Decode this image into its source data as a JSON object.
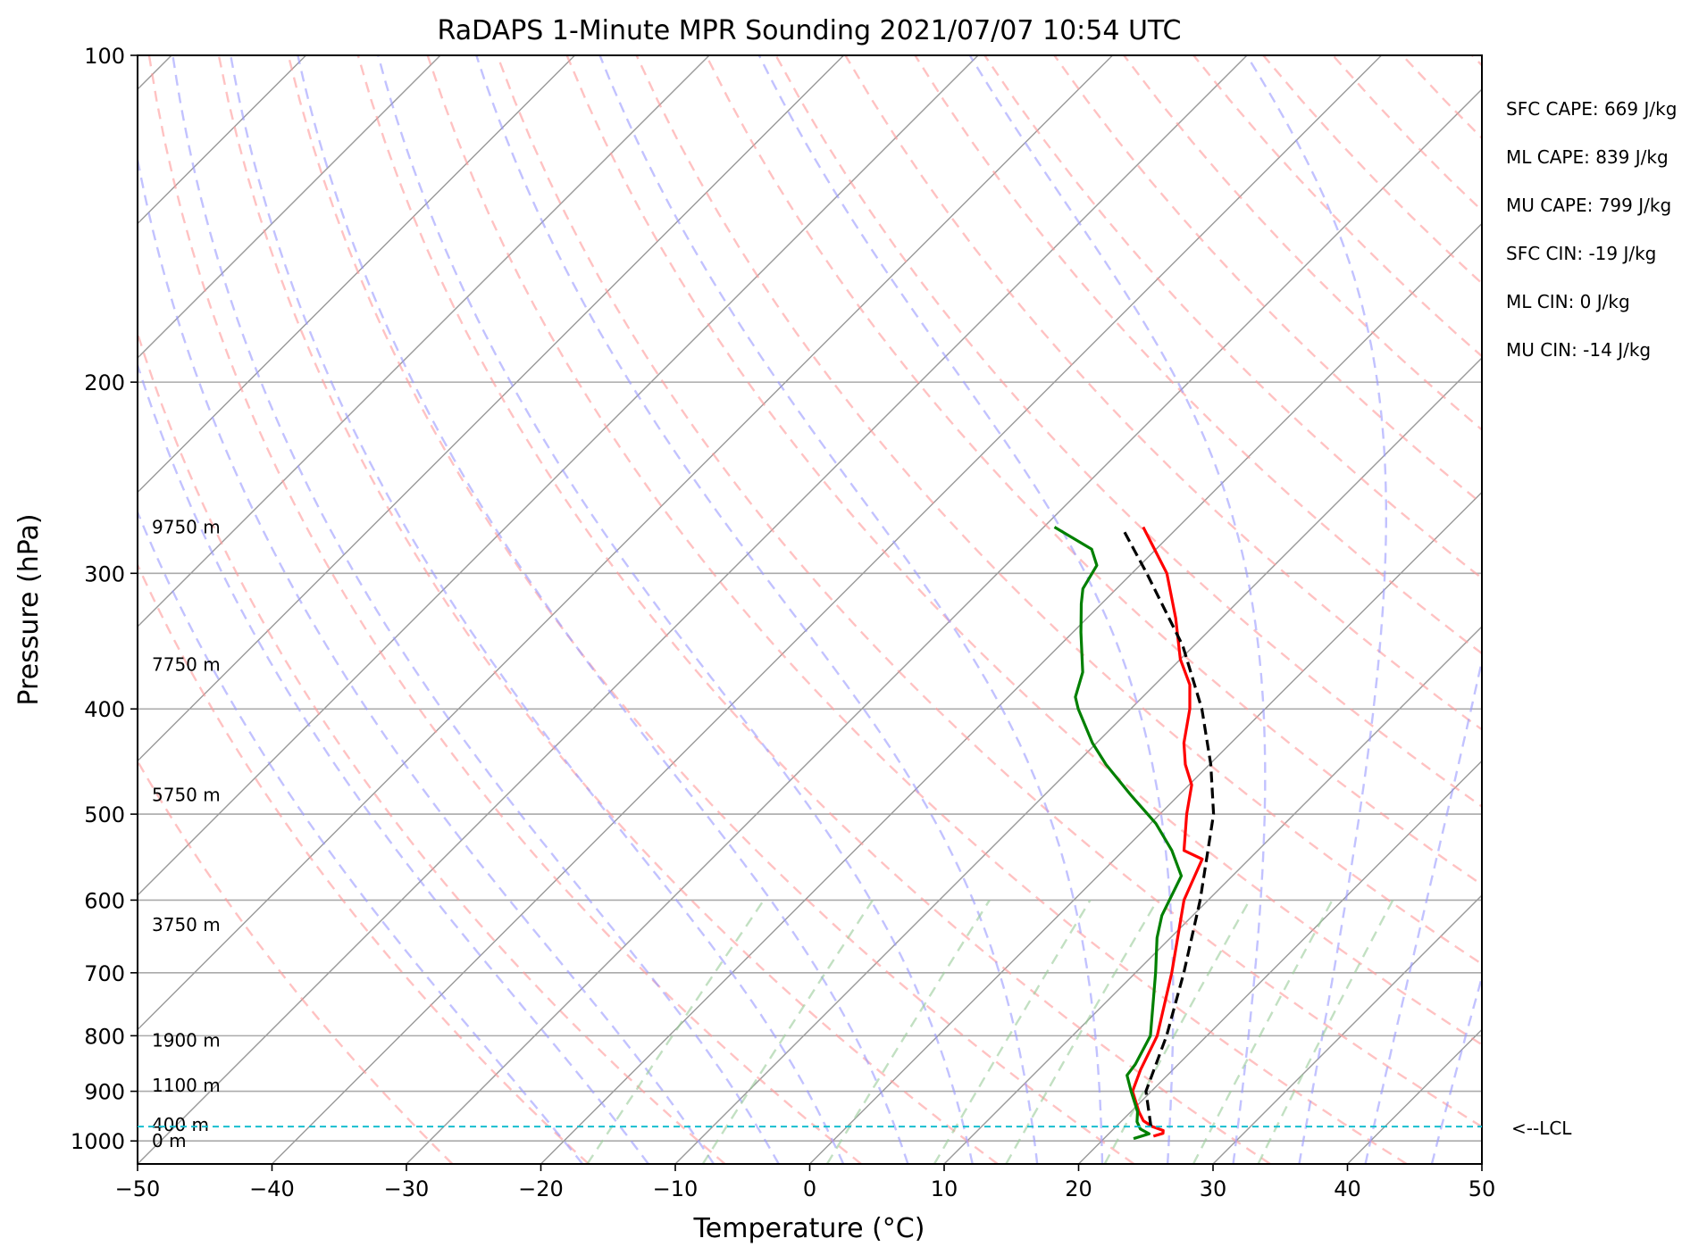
{
  "chart_data": {
    "type": "line",
    "title": "RaDAPS 1-Minute MPR Sounding 2021/07/07 10:54 UTC",
    "xlabel": "Temperature (°C)",
    "ylabel": "Pressure (hPa)",
    "xlim": [
      -50,
      50
    ],
    "ylim": [
      1050,
      100
    ],
    "y_scale": "log",
    "skew": "isotherms tilted 45° (skew-T log-p)",
    "grid": true,
    "x_ticks": [
      -50,
      -40,
      -30,
      -20,
      -10,
      0,
      10,
      20,
      30,
      40,
      50
    ],
    "x_tick_labels": [
      "−50",
      "−40",
      "−30",
      "−20",
      "−10",
      "0",
      "10",
      "20",
      "30",
      "40",
      "50"
    ],
    "y_ticks": [
      1000,
      900,
      800,
      700,
      600,
      500,
      400,
      300,
      200,
      100
    ],
    "y_tick_labels": [
      "1000",
      "900",
      "800",
      "700",
      "600",
      "500",
      "400",
      "300",
      "200",
      "100"
    ],
    "height_labels": [
      {
        "text": "9750 m",
        "pressure": 272
      },
      {
        "text": "7750 m",
        "pressure": 364
      },
      {
        "text": "5750 m",
        "pressure": 480
      },
      {
        "text": "3750 m",
        "pressure": 632
      },
      {
        "text": "1900 m",
        "pressure": 808
      },
      {
        "text": "1100 m",
        "pressure": 889
      },
      {
        "text": "400 m",
        "pressure": 966
      },
      {
        "text": "0 m",
        "pressure": 1000
      }
    ],
    "lcl": {
      "pressure": 970,
      "label": "<--LCL",
      "color": "#17becf"
    },
    "indices": [
      "SFC CAPE: 669 J/kg",
      "ML CAPE: 839 J/kg",
      "MU CAPE: 799 J/kg",
      "SFC CIN: -19 J/kg",
      "ML CIN: 0 J/kg",
      "MU CIN: -14 J/kg"
    ],
    "series": [
      {
        "role": "temperature",
        "color": "#ff0000",
        "points": [
          [
            990,
            23.5
          ],
          [
            984,
            24.0
          ],
          [
            978,
            23.8
          ],
          [
            970,
            22.7
          ],
          [
            958,
            21.6
          ],
          [
            940,
            20.6
          ],
          [
            900,
            18.6
          ],
          [
            860,
            17.6
          ],
          [
            800,
            16.3
          ],
          [
            700,
            12.7
          ],
          [
            600,
            8.2
          ],
          [
            550,
            6.5
          ],
          [
            540,
            4.5
          ],
          [
            500,
            2.0
          ],
          [
            470,
            0.2
          ],
          [
            450,
            -1.8
          ],
          [
            430,
            -3.5
          ],
          [
            400,
            -5.6
          ],
          [
            380,
            -7.4
          ],
          [
            360,
            -10.0
          ],
          [
            330,
            -13.4
          ],
          [
            300,
            -17.4
          ],
          [
            272,
            -22.6
          ]
        ]
      },
      {
        "role": "dewpoint",
        "color": "#008000",
        "points": [
          [
            995,
            22.2
          ],
          [
            985,
            23.0
          ],
          [
            975,
            22.0
          ],
          [
            960,
            21.2
          ],
          [
            940,
            20.5
          ],
          [
            900,
            18.5
          ],
          [
            870,
            17.0
          ],
          [
            850,
            16.8
          ],
          [
            800,
            15.8
          ],
          [
            700,
            11.5
          ],
          [
            650,
            9.0
          ],
          [
            620,
            7.7
          ],
          [
            570,
            6.2
          ],
          [
            540,
            3.6
          ],
          [
            510,
            0.4
          ],
          [
            480,
            -3.6
          ],
          [
            450,
            -7.7
          ],
          [
            430,
            -10.3
          ],
          [
            400,
            -13.9
          ],
          [
            390,
            -15.0
          ],
          [
            370,
            -16.3
          ],
          [
            340,
            -19.4
          ],
          [
            320,
            -21.5
          ],
          [
            310,
            -22.5
          ],
          [
            295,
            -23.2
          ],
          [
            285,
            -24.8
          ],
          [
            272,
            -29.2
          ]
        ]
      },
      {
        "role": "parcel",
        "color": "#000000",
        "dashed": true,
        "points": [
          [
            970,
            22.6
          ],
          [
            900,
            19.6
          ],
          [
            800,
            17.0
          ],
          [
            700,
            13.6
          ],
          [
            600,
            9.4
          ],
          [
            500,
            4.0
          ],
          [
            450,
            0.1
          ],
          [
            400,
            -4.7
          ],
          [
            350,
            -10.8
          ],
          [
            300,
            -18.9
          ],
          [
            275,
            -23.6
          ]
        ]
      }
    ],
    "background": {
      "isobars": [
        1000,
        900,
        800,
        700,
        600,
        500,
        400,
        300,
        200,
        100
      ],
      "dry_adiabat_color": "#ff9999",
      "moist_adiabat_color": "#9999ff",
      "mixing_ratio_color": "#99cc99",
      "isotherm_color": "#999999"
    }
  }
}
